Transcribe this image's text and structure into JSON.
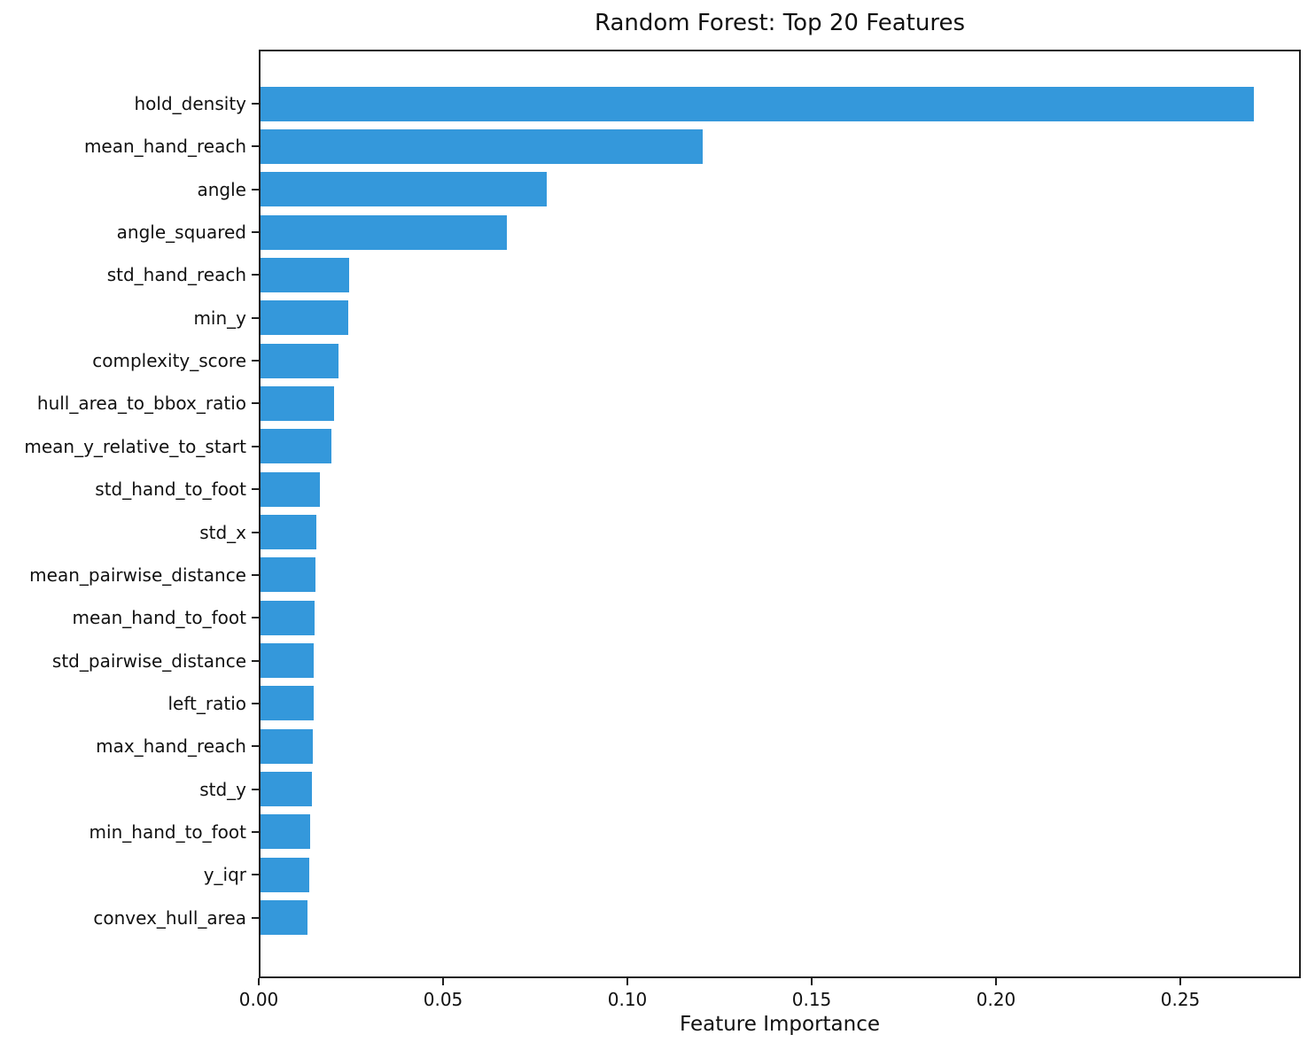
{
  "chart_data": {
    "type": "bar",
    "orientation": "horizontal",
    "title": "Random Forest: Top 20 Features",
    "xlabel": "Feature Importance",
    "ylabel": "",
    "categories": [
      "hold_density",
      "mean_hand_reach",
      "angle",
      "angle_squared",
      "std_hand_reach",
      "min_y",
      "complexity_score",
      "hull_area_to_bbox_ratio",
      "mean_y_relative_to_start",
      "std_hand_to_foot",
      "std_x",
      "mean_pairwise_distance",
      "mean_hand_to_foot",
      "std_pairwise_distance",
      "left_ratio",
      "max_hand_reach",
      "std_y",
      "min_hand_to_foot",
      "y_iqr",
      "convex_hull_area"
    ],
    "values": [
      0.2695,
      0.1199,
      0.0777,
      0.0668,
      0.024,
      0.0238,
      0.0212,
      0.02,
      0.0192,
      0.0161,
      0.0151,
      0.0149,
      0.0147,
      0.0145,
      0.0144,
      0.0142,
      0.0139,
      0.0135,
      0.0132,
      0.0127
    ],
    "xlim": [
      0,
      0.2825
    ],
    "xticks": [
      0.0,
      0.05,
      0.1,
      0.15,
      0.2,
      0.25
    ],
    "xtick_labels": [
      "0.00",
      "0.05",
      "0.10",
      "0.15",
      "0.20",
      "0.25"
    ],
    "bar_color": "#3498db",
    "spine_color": "#1f1f1f",
    "grid": false,
    "legend": false
  }
}
